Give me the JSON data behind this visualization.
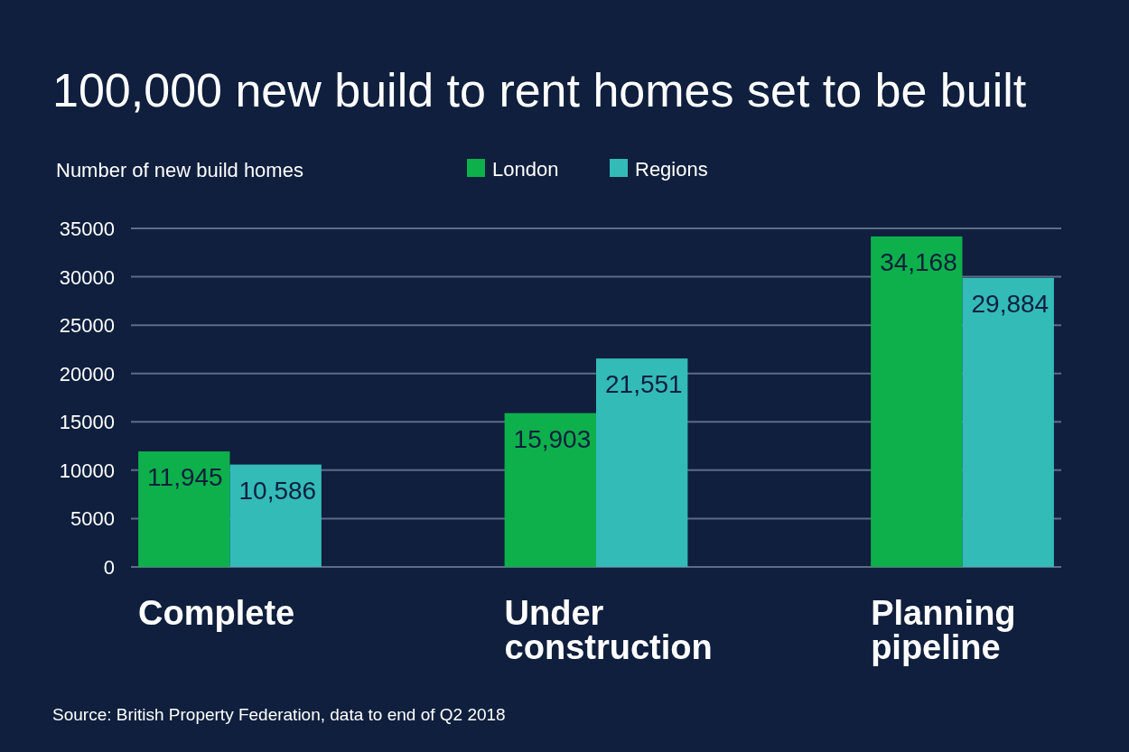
{
  "chart_data": {
    "type": "bar",
    "title": "100,000 new build to rent homes set to be built",
    "ylabel": "Number of new build homes",
    "categories": [
      "Complete",
      "Under construction",
      "Planning pipeline"
    ],
    "series": [
      {
        "name": "London",
        "color": "#0db04b",
        "values": [
          11945,
          15903,
          34168
        ],
        "value_labels": [
          "11,945",
          "15,903",
          "34,168"
        ]
      },
      {
        "name": "Regions",
        "color": "#33bbb8",
        "values": [
          10586,
          21551,
          29884
        ],
        "value_labels": [
          "10,586",
          "21,551",
          "29,884"
        ]
      }
    ],
    "ylim": [
      0,
      35000
    ],
    "yticks": [
      0,
      5000,
      10000,
      15000,
      20000,
      25000,
      30000,
      35000
    ],
    "grid": "y",
    "legend": "top",
    "annotations": [
      "Source: British Property Federation, data to end of Q2 2018"
    ]
  }
}
